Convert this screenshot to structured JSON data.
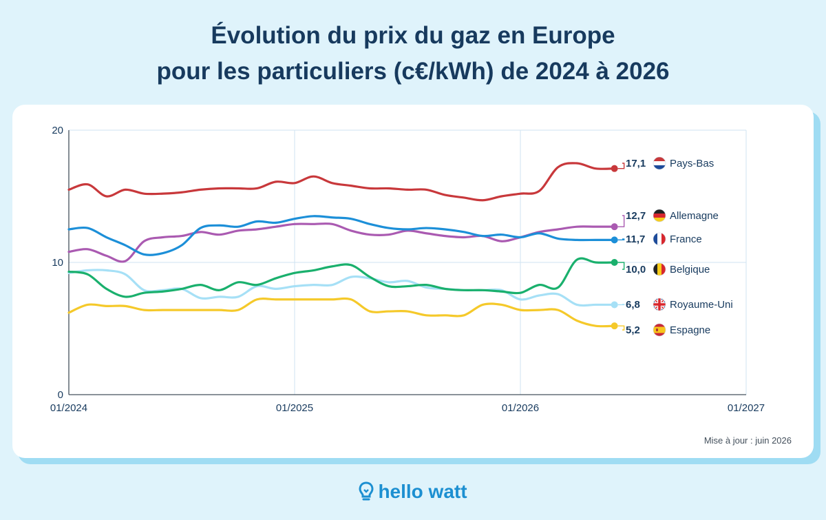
{
  "title_line1": "Évolution du prix du gaz en Europe",
  "title_line2": "pour les particuliers (c€/kWh) de 2024 à 2026",
  "update_note": "Mise à jour : juin 2026",
  "logo_text": "hello watt",
  "chart_data": {
    "type": "line",
    "title": "Évolution du prix du gaz en Europe pour les particuliers (c€/kWh) de 2024 à 2026",
    "xlabel": "",
    "ylabel": "",
    "xlim": [
      "2024-01",
      "2027-01"
    ],
    "ylim": [
      0,
      20
    ],
    "x_ticks": [
      "01/2024",
      "01/2025",
      "01/2026",
      "01/2027"
    ],
    "y_ticks": [
      "0",
      "10",
      "20"
    ],
    "grid": true,
    "x": [
      "2024-01",
      "2024-02",
      "2024-03",
      "2024-04",
      "2024-05",
      "2024-06",
      "2024-07",
      "2024-08",
      "2024-09",
      "2024-10",
      "2024-11",
      "2024-12",
      "2025-01",
      "2025-02",
      "2025-03",
      "2025-04",
      "2025-05",
      "2025-06",
      "2025-07",
      "2025-08",
      "2025-09",
      "2025-10",
      "2025-11",
      "2025-12",
      "2026-01",
      "2026-02",
      "2026-03",
      "2026-04",
      "2026-05",
      "2026-06"
    ],
    "series": [
      {
        "name": "Pays-Bas",
        "color": "#c8383b",
        "flag": "nl",
        "last_label": "17,1",
        "values": [
          15.5,
          15.9,
          15.0,
          15.5,
          15.2,
          15.2,
          15.3,
          15.5,
          15.6,
          15.6,
          15.6,
          16.1,
          16.0,
          16.5,
          16.0,
          15.8,
          15.6,
          15.6,
          15.5,
          15.5,
          15.1,
          14.9,
          14.7,
          15.0,
          15.2,
          15.4,
          17.2,
          17.5,
          17.1,
          17.1
        ]
      },
      {
        "name": "Allemagne",
        "color": "#aa5ab1",
        "flag": "de",
        "last_label": "12,7",
        "values": [
          10.8,
          11.0,
          10.5,
          10.1,
          11.6,
          11.9,
          12.0,
          12.3,
          12.1,
          12.4,
          12.5,
          12.7,
          12.9,
          12.9,
          12.9,
          12.4,
          12.1,
          12.1,
          12.4,
          12.2,
          12.0,
          11.9,
          12.0,
          11.6,
          11.9,
          12.3,
          12.5,
          12.7,
          12.7,
          12.7
        ]
      },
      {
        "name": "France",
        "color": "#1c8fd8",
        "flag": "fr",
        "last_label": "11,7",
        "values": [
          12.5,
          12.6,
          11.9,
          11.3,
          10.6,
          10.7,
          11.3,
          12.6,
          12.8,
          12.7,
          13.1,
          13.0,
          13.3,
          13.5,
          13.4,
          13.3,
          12.9,
          12.6,
          12.5,
          12.6,
          12.5,
          12.3,
          12.0,
          12.1,
          11.9,
          12.2,
          11.8,
          11.7,
          11.7,
          11.7
        ]
      },
      {
        "name": "Belgique",
        "color": "#1ab06d",
        "flag": "be",
        "last_label": "10,0",
        "values": [
          9.3,
          9.1,
          8.0,
          7.4,
          7.7,
          7.8,
          8.0,
          8.3,
          7.9,
          8.5,
          8.3,
          8.8,
          9.2,
          9.4,
          9.7,
          9.8,
          8.9,
          8.2,
          8.2,
          8.3,
          8.0,
          7.9,
          7.9,
          7.8,
          7.7,
          8.3,
          8.1,
          10.2,
          10.0,
          10.0
        ]
      },
      {
        "name": "Royaume-Uni",
        "color": "#a6e0f6",
        "flag": "gb",
        "last_label": "6,8",
        "values": [
          9.2,
          9.4,
          9.4,
          9.1,
          7.9,
          7.9,
          8.0,
          7.3,
          7.4,
          7.4,
          8.2,
          8.0,
          8.2,
          8.3,
          8.3,
          8.9,
          8.8,
          8.5,
          8.6,
          8.1,
          8.0,
          7.9,
          7.9,
          7.9,
          7.2,
          7.5,
          7.6,
          6.8,
          6.8,
          6.8
        ]
      },
      {
        "name": "Espagne",
        "color": "#f5c92a",
        "flag": "es",
        "last_label": "5,2",
        "values": [
          6.2,
          6.8,
          6.7,
          6.7,
          6.4,
          6.4,
          6.4,
          6.4,
          6.4,
          6.4,
          7.2,
          7.2,
          7.2,
          7.2,
          7.2,
          7.2,
          6.3,
          6.3,
          6.3,
          6.0,
          6.0,
          6.0,
          6.8,
          6.8,
          6.4,
          6.4,
          6.4,
          5.6,
          5.2,
          5.2
        ]
      }
    ]
  }
}
